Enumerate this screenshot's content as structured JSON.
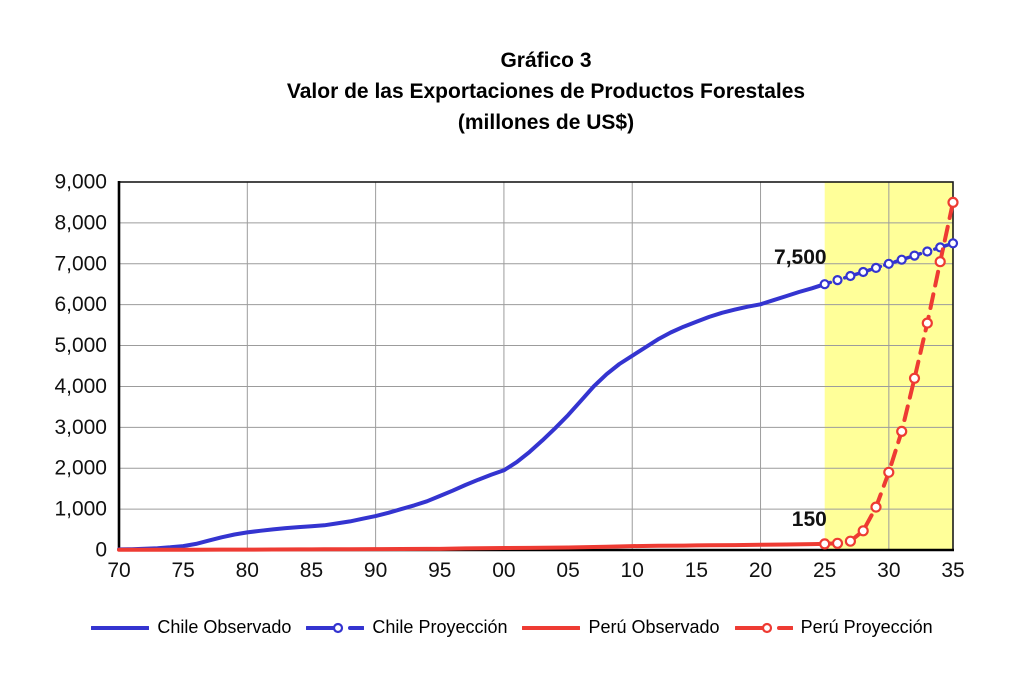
{
  "title": {
    "line1": "Gráfico 3",
    "line2": "Valor de las Exportaciones de Productos Forestales",
    "line3": "(millones de US$)"
  },
  "chart_data": {
    "type": "line",
    "title": "Gráfico 3 — Valor de las Exportaciones de Productos Forestales (millones de US$)",
    "xlabel": "",
    "ylabel": "",
    "xlim": [
      1970,
      2035
    ],
    "ylim": [
      0,
      9000
    ],
    "grid": true,
    "legend_position": "bottom",
    "x_ticks": [
      {
        "v": 1970,
        "label": "70"
      },
      {
        "v": 1975,
        "label": "75"
      },
      {
        "v": 1980,
        "label": "80"
      },
      {
        "v": 1985,
        "label": "85"
      },
      {
        "v": 1990,
        "label": "90"
      },
      {
        "v": 1995,
        "label": "95"
      },
      {
        "v": 2000,
        "label": "00"
      },
      {
        "v": 2005,
        "label": "05"
      },
      {
        "v": 2010,
        "label": "10"
      },
      {
        "v": 2015,
        "label": "15"
      },
      {
        "v": 2020,
        "label": "20"
      },
      {
        "v": 2025,
        "label": "25"
      },
      {
        "v": 2030,
        "label": "30"
      },
      {
        "v": 2035,
        "label": "35"
      }
    ],
    "y_ticks": [
      {
        "v": 0,
        "label": "0"
      },
      {
        "v": 1000,
        "label": "1,000"
      },
      {
        "v": 2000,
        "label": "2,000"
      },
      {
        "v": 3000,
        "label": "3,000"
      },
      {
        "v": 4000,
        "label": "4,000"
      },
      {
        "v": 5000,
        "label": "5,000"
      },
      {
        "v": 6000,
        "label": "6,000"
      },
      {
        "v": 7000,
        "label": "7,000"
      },
      {
        "v": 8000,
        "label": "8,000"
      },
      {
        "v": 9000,
        "label": "9,000"
      }
    ],
    "x_gridlines": [
      1980,
      1990,
      2000,
      2010,
      2020,
      2030
    ],
    "y_gridlines": [
      1000,
      2000,
      3000,
      4000,
      5000,
      6000,
      7000,
      8000
    ],
    "highlight_band": {
      "x_from": 2025,
      "x_to": 2035,
      "color": "#FFFF99"
    },
    "colors": {
      "chile": "#3434D0",
      "peru": "#EE3B33",
      "grid": "#9C9C9C",
      "axis": "#000000",
      "chile_label": "#1414CE",
      "peru_label": "#DF0000"
    },
    "series": [
      {
        "name": "Chile Observado",
        "color": "#3434D0",
        "style": "solid",
        "width": 4,
        "markers": false,
        "points": [
          [
            1970,
            15
          ],
          [
            1971,
            20
          ],
          [
            1972,
            30
          ],
          [
            1973,
            45
          ],
          [
            1974,
            65
          ],
          [
            1975,
            95
          ],
          [
            1976,
            150
          ],
          [
            1977,
            230
          ],
          [
            1978,
            310
          ],
          [
            1979,
            380
          ],
          [
            1980,
            430
          ],
          [
            1981,
            470
          ],
          [
            1982,
            505
          ],
          [
            1983,
            535
          ],
          [
            1984,
            560
          ],
          [
            1985,
            580
          ],
          [
            1986,
            605
          ],
          [
            1987,
            650
          ],
          [
            1988,
            700
          ],
          [
            1989,
            765
          ],
          [
            1990,
            830
          ],
          [
            1991,
            910
          ],
          [
            1992,
            1000
          ],
          [
            1993,
            1090
          ],
          [
            1994,
            1190
          ],
          [
            1995,
            1320
          ],
          [
            1996,
            1450
          ],
          [
            1997,
            1590
          ],
          [
            1998,
            1720
          ],
          [
            1999,
            1840
          ],
          [
            2000,
            1950
          ],
          [
            2001,
            2150
          ],
          [
            2002,
            2400
          ],
          [
            2003,
            2680
          ],
          [
            2004,
            2980
          ],
          [
            2005,
            3300
          ],
          [
            2006,
            3650
          ],
          [
            2007,
            4000
          ],
          [
            2008,
            4300
          ],
          [
            2009,
            4550
          ],
          [
            2010,
            4750
          ],
          [
            2011,
            4950
          ],
          [
            2012,
            5150
          ],
          [
            2013,
            5320
          ],
          [
            2014,
            5460
          ],
          [
            2015,
            5580
          ],
          [
            2016,
            5700
          ],
          [
            2017,
            5800
          ],
          [
            2018,
            5880
          ],
          [
            2019,
            5950
          ],
          [
            2020,
            6010
          ],
          [
            2021,
            6110
          ],
          [
            2022,
            6210
          ],
          [
            2023,
            6310
          ],
          [
            2024,
            6400
          ],
          [
            2025,
            6500
          ]
        ]
      },
      {
        "name": "Chile Proyección",
        "color": "#3434D0",
        "style": "dashed",
        "dash": "6 4.5",
        "width": 3.5,
        "markers": true,
        "marker_r": 4,
        "points": [
          [
            2025,
            6500
          ],
          [
            2026,
            6600
          ],
          [
            2027,
            6700
          ],
          [
            2028,
            6800
          ],
          [
            2029,
            6900
          ],
          [
            2030,
            7000
          ],
          [
            2031,
            7100
          ],
          [
            2032,
            7200
          ],
          [
            2033,
            7300
          ],
          [
            2034,
            7400
          ],
          [
            2035,
            7500
          ]
        ]
      },
      {
        "name": "Perú Observado",
        "color": "#EE3B33",
        "style": "solid",
        "width": 4,
        "markers": false,
        "points": [
          [
            1970,
            5
          ],
          [
            1972,
            6
          ],
          [
            1974,
            7
          ],
          [
            1976,
            8
          ],
          [
            1978,
            9
          ],
          [
            1980,
            10
          ],
          [
            1982,
            12
          ],
          [
            1984,
            14
          ],
          [
            1985,
            15
          ],
          [
            1986,
            17
          ],
          [
            1988,
            20
          ],
          [
            1990,
            22
          ],
          [
            1992,
            24
          ],
          [
            1994,
            27
          ],
          [
            1995,
            28
          ],
          [
            1996,
            34
          ],
          [
            1997,
            40
          ],
          [
            1998,
            43
          ],
          [
            2000,
            48
          ],
          [
            2002,
            52
          ],
          [
            2004,
            58
          ],
          [
            2005,
            62
          ],
          [
            2006,
            68
          ],
          [
            2008,
            80
          ],
          [
            2010,
            95
          ],
          [
            2012,
            102
          ],
          [
            2014,
            108
          ],
          [
            2015,
            112
          ],
          [
            2016,
            115
          ],
          [
            2018,
            120
          ],
          [
            2020,
            128
          ],
          [
            2022,
            135
          ],
          [
            2024,
            145
          ],
          [
            2025,
            150
          ]
        ]
      },
      {
        "name": "Perú Proyección",
        "color": "#EE3B33",
        "style": "dashed",
        "dash": "14 9",
        "width": 4,
        "markers": true,
        "marker_r": 4.5,
        "points": [
          [
            2025,
            150
          ],
          [
            2026,
            165
          ],
          [
            2027,
            215
          ],
          [
            2028,
            470
          ],
          [
            2029,
            1050
          ],
          [
            2030,
            1900
          ],
          [
            2031,
            2900
          ],
          [
            2032,
            4200
          ],
          [
            2033,
            5550
          ],
          [
            2034,
            7050
          ],
          [
            2035,
            8500
          ]
        ]
      }
    ],
    "annotations": [
      {
        "text": "7,500",
        "color": "#1414CE",
        "x": 2023.1,
        "y": 7000
      },
      {
        "text": "150",
        "color": "#DF0000",
        "x": 2023.8,
        "y": 590
      }
    ]
  }
}
